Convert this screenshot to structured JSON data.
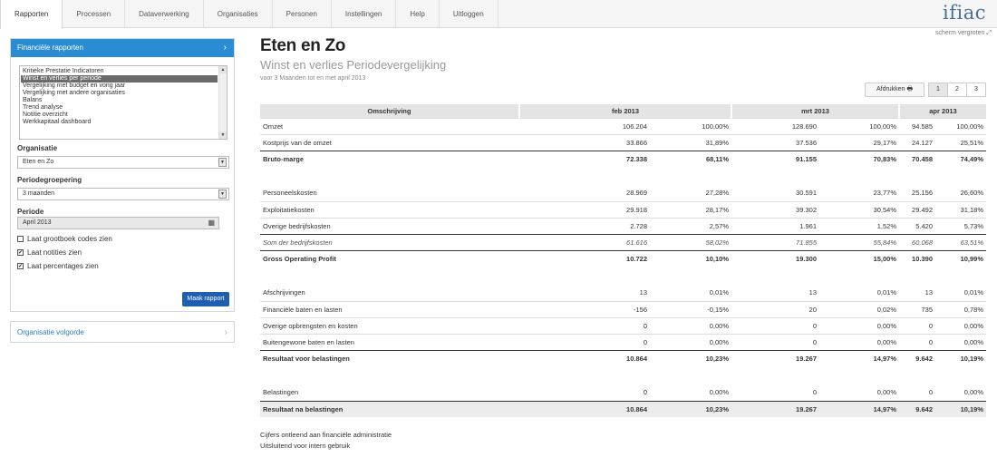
{
  "nav": {
    "items": [
      "Rapporten",
      "Processen",
      "Dataverwerking",
      "Organisaties",
      "Personen",
      "Instellingen",
      "Help",
      "Uitloggen"
    ],
    "logo": "ifiac",
    "scherm": "scherm vergroten"
  },
  "sidebar": {
    "header": "Financiële rapporten",
    "reports": [
      "Kritieke Prestatie Indicatoren",
      "Winst en verlies per periode",
      "Vergelijking met budget en vorig jaar",
      "Vergelijking met andere organisaties",
      "Balans",
      "Trend analyse",
      "Notitie overzicht",
      "Werkkapitaal dashboard"
    ],
    "selected_report": "Winst en verlies per periode",
    "organisatie_label": "Organisatie",
    "organisatie_value": "Eten en Zo",
    "periodegroepering_label": "Periodegroepering",
    "periodegroepering_value": "3 maanden",
    "periode_label": "Periode",
    "periode_value": "April 2013",
    "checkboxes": [
      {
        "label": "Laat grootboek codes zien",
        "checked": false
      },
      {
        "label": "Laat notities zien",
        "checked": true
      },
      {
        "label": "Laat percentages zien",
        "checked": true
      }
    ],
    "submit": "Maak rapport",
    "section2": "Organisatie volgorde"
  },
  "main": {
    "title": "Eten en Zo",
    "subtitle": "Winst en verlies Periodevergelijking",
    "subsub": "voor 3 Maanden tot en met april 2013",
    "print": "Afdrukken",
    "pages": [
      "1",
      "2",
      "3"
    ],
    "headers": [
      "Omschrijving",
      "feb 2013",
      "mrt 2013",
      "apr 2013"
    ],
    "rows": [
      {
        "type": "line",
        "cells": [
          "Omzet",
          "106.204",
          "100,00%",
          "128.690",
          "100,00%",
          "94.585",
          "100,00%"
        ]
      },
      {
        "type": "line",
        "cells": [
          "Kostprijs van de omzet",
          "33.866",
          "31,89%",
          "37.536",
          "29,17%",
          "24.127",
          "25,51%"
        ]
      },
      {
        "type": "bold",
        "cells": [
          "Bruto-marge",
          "72.338",
          "68,11%",
          "91.155",
          "70,83%",
          "70.458",
          "74,49%"
        ]
      },
      {
        "type": "gap",
        "cells": [
          "",
          "",
          "",
          "",
          "",
          "",
          ""
        ]
      },
      {
        "type": "plain",
        "cells": [
          "Personeelskosten",
          "28.969",
          "27,28%",
          "30.591",
          "23,77%",
          "25.156",
          "26,60%"
        ]
      },
      {
        "type": "line",
        "cells": [
          "Exploitatiekosten",
          "29.918",
          "28,17%",
          "39.302",
          "30,54%",
          "29.492",
          "31,18%"
        ]
      },
      {
        "type": "line",
        "cells": [
          "Overige bedrijfskosten",
          "2.728",
          "2,57%",
          "1.961",
          "1,52%",
          "5.420",
          "5,73%"
        ]
      },
      {
        "type": "italic",
        "cells": [
          "Som der bedrijfskosten",
          "61.616",
          "58,02%",
          "71.855",
          "55,84%",
          "60.068",
          "63,51%"
        ]
      },
      {
        "type": "bold",
        "cells": [
          "Gross Operating Profit",
          "10.722",
          "10,10%",
          "19.300",
          "15,00%",
          "10.390",
          "10,99%"
        ]
      },
      {
        "type": "gap",
        "cells": [
          "",
          "",
          "",
          "",
          "",
          "",
          ""
        ]
      },
      {
        "type": "plain",
        "cells": [
          "Afschrijvingen",
          "13",
          "0,01%",
          "13",
          "0,01%",
          "13",
          "0,01%"
        ]
      },
      {
        "type": "line",
        "cells": [
          "Financiële baten en lasten",
          "-156",
          "-0,15%",
          "20",
          "0,02%",
          "735",
          "0,78%"
        ]
      },
      {
        "type": "line",
        "cells": [
          "Overige opbrengsten en kosten",
          "0",
          "0,00%",
          "0",
          "0,00%",
          "0",
          "0,00%"
        ]
      },
      {
        "type": "line",
        "cells": [
          "Buitengewone baten en lasten",
          "0",
          "0,00%",
          "0",
          "0,00%",
          "0",
          "0,00%"
        ]
      },
      {
        "type": "bold",
        "cells": [
          "Resultaat voor belastingen",
          "10.864",
          "10,23%",
          "19.267",
          "14,97%",
          "9.642",
          "10,19%"
        ]
      },
      {
        "type": "gap",
        "cells": [
          "",
          "",
          "",
          "",
          "",
          "",
          ""
        ]
      },
      {
        "type": "plain",
        "cells": [
          "Belastingen",
          "0",
          "0,00%",
          "0",
          "0,00%",
          "0",
          "0,00%"
        ]
      },
      {
        "type": "gray",
        "cells": [
          "Resultaat na belastingen",
          "10.864",
          "10,23%",
          "19.267",
          "14,97%",
          "9.642",
          "10,19%"
        ]
      }
    ],
    "footer": [
      "Cijfers ontleend aan financiële administratie",
      "Uitsluitend voor intern gebruik"
    ]
  }
}
